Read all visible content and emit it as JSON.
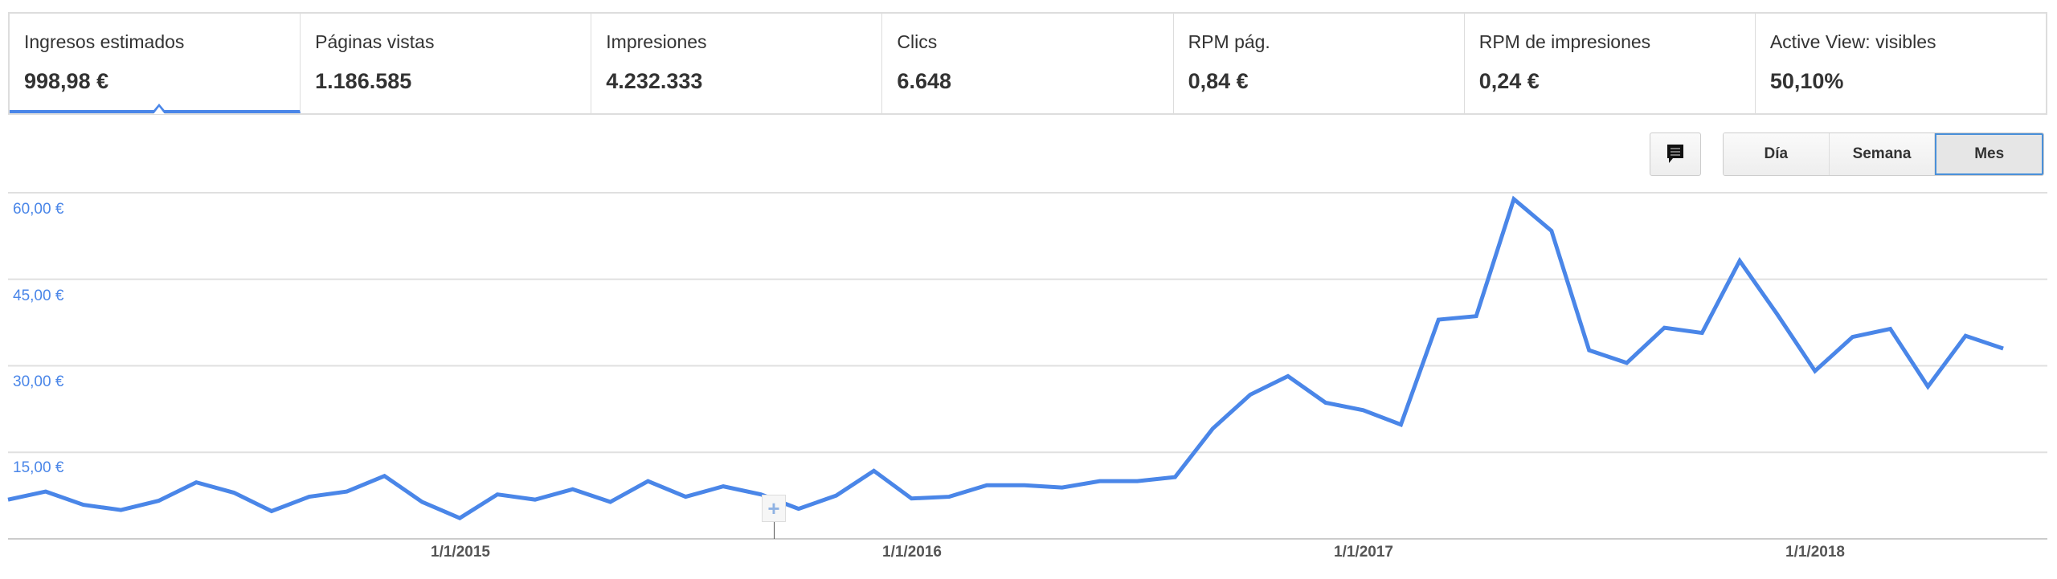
{
  "metrics": [
    {
      "label": "Ingresos estimados",
      "value": "998,98 €",
      "active": true
    },
    {
      "label": "Páginas vistas",
      "value": "1.186.585"
    },
    {
      "label": "Impresiones",
      "value": "4.232.333"
    },
    {
      "label": "Clics",
      "value": "6.648"
    },
    {
      "label": "RPM pág.",
      "value": "0,84 €"
    },
    {
      "label": "RPM de impresiones",
      "value": "0,24 €"
    },
    {
      "label": "Active View: visibles",
      "value": "50,10%"
    }
  ],
  "toolbar": {
    "comment_icon": "comment-icon",
    "granularity": [
      "Día",
      "Semana",
      "Mes"
    ],
    "selected": "Mes"
  },
  "annotation_marker": {
    "icon": "plus-icon",
    "month": "2015-09"
  },
  "colors": {
    "accent": "#4a86e8",
    "grid": "#e0e0e0"
  },
  "chart_data": {
    "type": "line",
    "x_start": "2014-01",
    "x_interval": "month",
    "x_ticks": [
      "1/1/2015",
      "1/1/2016",
      "1/1/2017",
      "1/1/2018"
    ],
    "y_ticks": [
      "15,00 €",
      "30,00 €",
      "45,00 €",
      "60,00 €"
    ],
    "ylim": [
      0,
      60
    ],
    "grid": true,
    "series": [
      {
        "values": [
          6.8,
          8.2,
          5.9,
          5.0,
          6.6,
          9.8,
          8.0,
          4.8,
          7.3,
          8.2,
          10.9,
          6.4,
          3.6,
          7.7,
          6.8,
          8.6,
          6.4,
          10.0,
          7.3,
          9.1,
          7.7,
          5.2,
          7.5,
          11.8,
          7.0,
          7.3,
          9.3,
          9.3,
          8.9,
          10.0,
          10.0,
          10.7,
          19.1,
          25.0,
          28.2,
          23.6,
          22.3,
          19.8,
          38.0,
          38.6,
          58.9,
          53.4,
          32.7,
          30.5,
          36.6,
          35.7,
          48.2,
          38.9,
          29.1,
          35.0,
          36.4,
          26.4,
          35.2,
          33.0
        ]
      }
    ]
  }
}
